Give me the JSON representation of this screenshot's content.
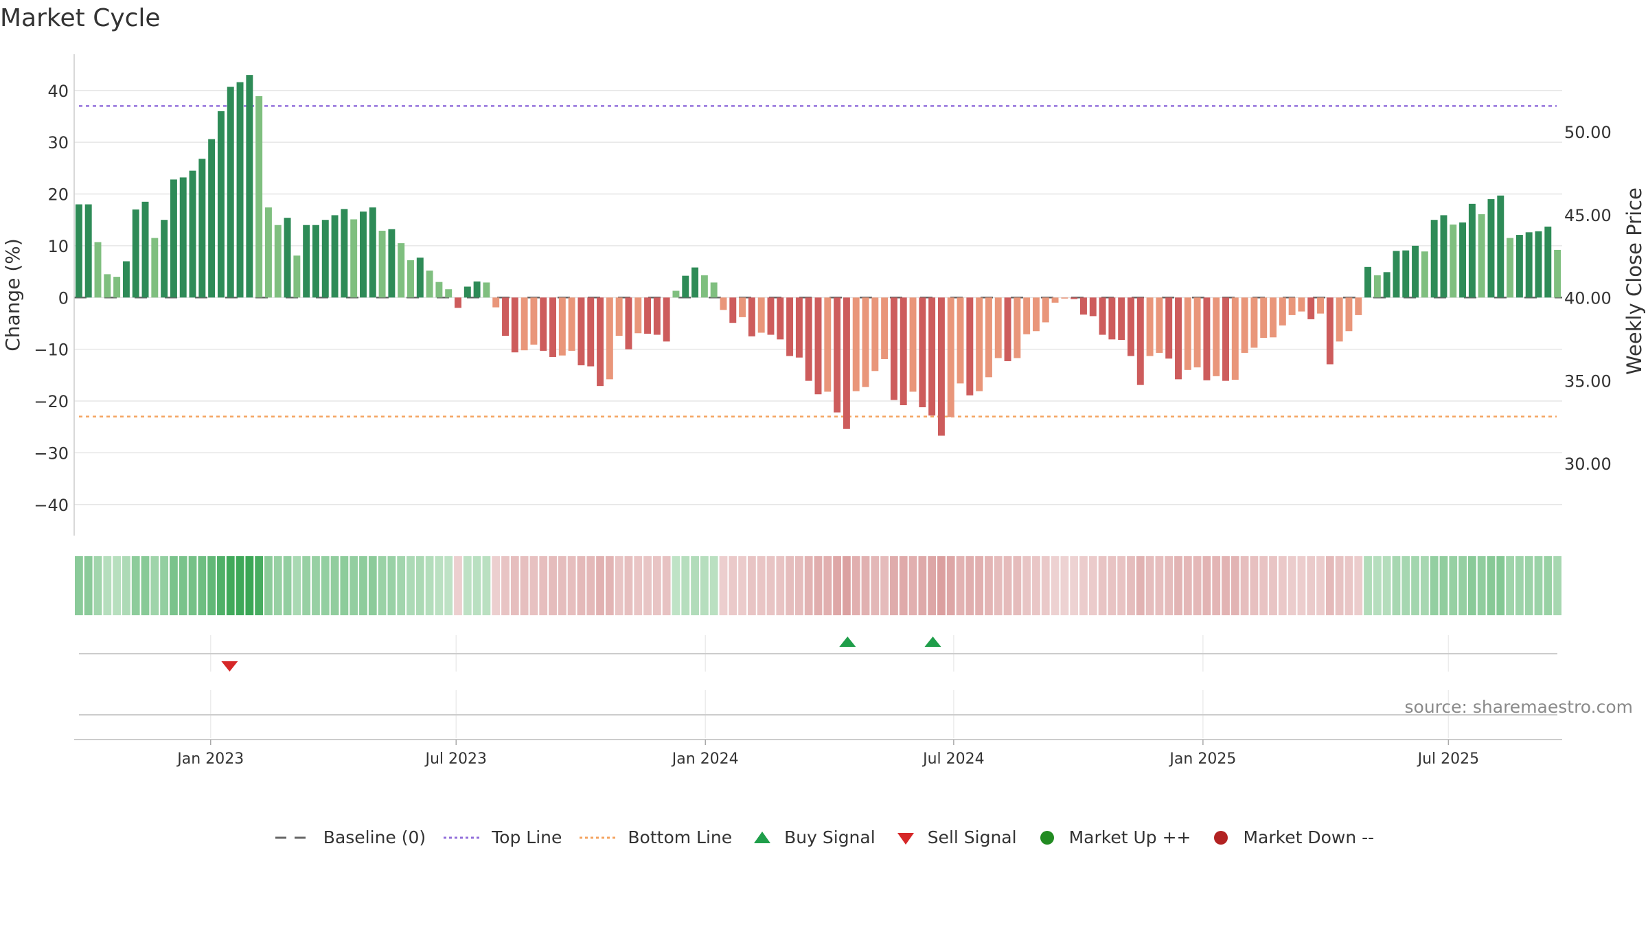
{
  "title": "Market Cycle",
  "source": "source: sharemaestro.com",
  "colors": {
    "up_dark": "#2e8b57",
    "up_light": "#7fbf7f",
    "down_dark": "#cd5c5c",
    "down_light": "#e9967a",
    "top_line": "#9370db",
    "bottom_line": "#f4a460",
    "baseline": "#666666",
    "buy": "#1f9e4a",
    "sell": "#d62728",
    "market_up": "#228b22",
    "market_down": "#b22222"
  },
  "chart_data": {
    "type": "bar",
    "title": "Market Cycle",
    "ylabel": "Change (%)",
    "y2label": "Weekly Close Price",
    "ylim": [
      -46,
      47
    ],
    "yticks": [
      40,
      30,
      20,
      10,
      0,
      -10,
      -20,
      -30,
      -40
    ],
    "ytick_labels": [
      "40",
      "30",
      "20",
      "10",
      "0",
      "−10",
      "−20",
      "−30",
      "−40"
    ],
    "y2lim": [
      25.65,
      54.69
    ],
    "y2ticks": [
      50,
      45,
      40,
      35,
      30
    ],
    "y2tick_labels": [
      "50.00",
      "45.00",
      "40.00",
      "35.00",
      "30.00"
    ],
    "xlim": [
      0,
      157
    ],
    "xticks": [
      {
        "label": "Jan 2023",
        "x": 14.4
      },
      {
        "label": "Jul 2023",
        "x": 40.3
      },
      {
        "label": "Jan 2024",
        "x": 66.6
      },
      {
        "label": "Jul 2024",
        "x": 92.8
      },
      {
        "label": "Jan 2025",
        "x": 119.1
      },
      {
        "label": "Jul 2025",
        "x": 145.0
      }
    ],
    "top_line": 37,
    "bottom_line": -23,
    "values": [
      18,
      18,
      10.7,
      4.5,
      4,
      7,
      17,
      18.5,
      11.5,
      15,
      22.8,
      23.2,
      24.5,
      26.8,
      30.6,
      36,
      40.7,
      41.6,
      43,
      38.9,
      17.4,
      14,
      15.4,
      8.1,
      14,
      14,
      15,
      15.9,
      17.1,
      15.1,
      16.6,
      17.4,
      12.9,
      13.2,
      10.5,
      7.2,
      7.7,
      5.2,
      3,
      1.6,
      -2,
      2.1,
      3.1,
      2.9,
      -1.9,
      -7.4,
      -10.6,
      -10.2,
      -9.1,
      -10.3,
      -11.5,
      -11.2,
      -10.3,
      -13.1,
      -13.3,
      -17.1,
      -15.8,
      -7.4,
      -10,
      -6.9,
      -7,
      -7.2,
      -8.5,
      1.3,
      4.2,
      5.8,
      4.3,
      2.9,
      -2.4,
      -4.9,
      -3.8,
      -7.5,
      -6.8,
      -7.2,
      -8.1,
      -11.3,
      -11.6,
      -16.1,
      -18.7,
      -18.2,
      -22.2,
      -25.4,
      -18.1,
      -17.3,
      -14.2,
      -11.9,
      -19.8,
      -20.8,
      -18.2,
      -21.2,
      -22.8,
      -26.7,
      -23.1,
      -16.6,
      -18.9,
      -18.1,
      -15.4,
      -11.7,
      -12.3,
      -11.7,
      -7.1,
      -6.5,
      -4.8,
      -1,
      -0.2,
      -0.3,
      -3.3,
      -3.6,
      -7.2,
      -8.1,
      -8.2,
      -11.3,
      -16.9,
      -11.3,
      -10.7,
      -11.8,
      -15.8,
      -14,
      -13.5,
      -16,
      -15.2,
      -16.1,
      -15.9,
      -10.7,
      -9.7,
      -7.8,
      -7.7,
      -5.4,
      -3.4,
      -2.7,
      -4.2,
      -3.1,
      -12.9,
      -8.5,
      -6.5,
      -3.4,
      5.9,
      4.3,
      4.9,
      9,
      9.1,
      10,
      8.9,
      15,
      15.9,
      14.1,
      14.5,
      18.1,
      16.1,
      19,
      19.7,
      11.5,
      12.1,
      12.6,
      12.8,
      13.7,
      9.2
    ],
    "signals": [
      {
        "type": "sell",
        "x": 16.4,
        "label": "Sell Signal"
      },
      {
        "type": "buy",
        "x": 81.6,
        "label": "Buy Signal"
      },
      {
        "type": "buy",
        "x": 90.6,
        "label": "Buy Signal"
      }
    ]
  },
  "legend": [
    {
      "key": "baseline",
      "label": "Baseline (0)"
    },
    {
      "key": "top_line",
      "label": "Top Line"
    },
    {
      "key": "bottom_line",
      "label": "Bottom Line"
    },
    {
      "key": "buy",
      "label": "Buy Signal"
    },
    {
      "key": "sell",
      "label": "Sell Signal"
    },
    {
      "key": "market_up",
      "label": "Market Up ++"
    },
    {
      "key": "market_down",
      "label": "Market Down --"
    }
  ]
}
